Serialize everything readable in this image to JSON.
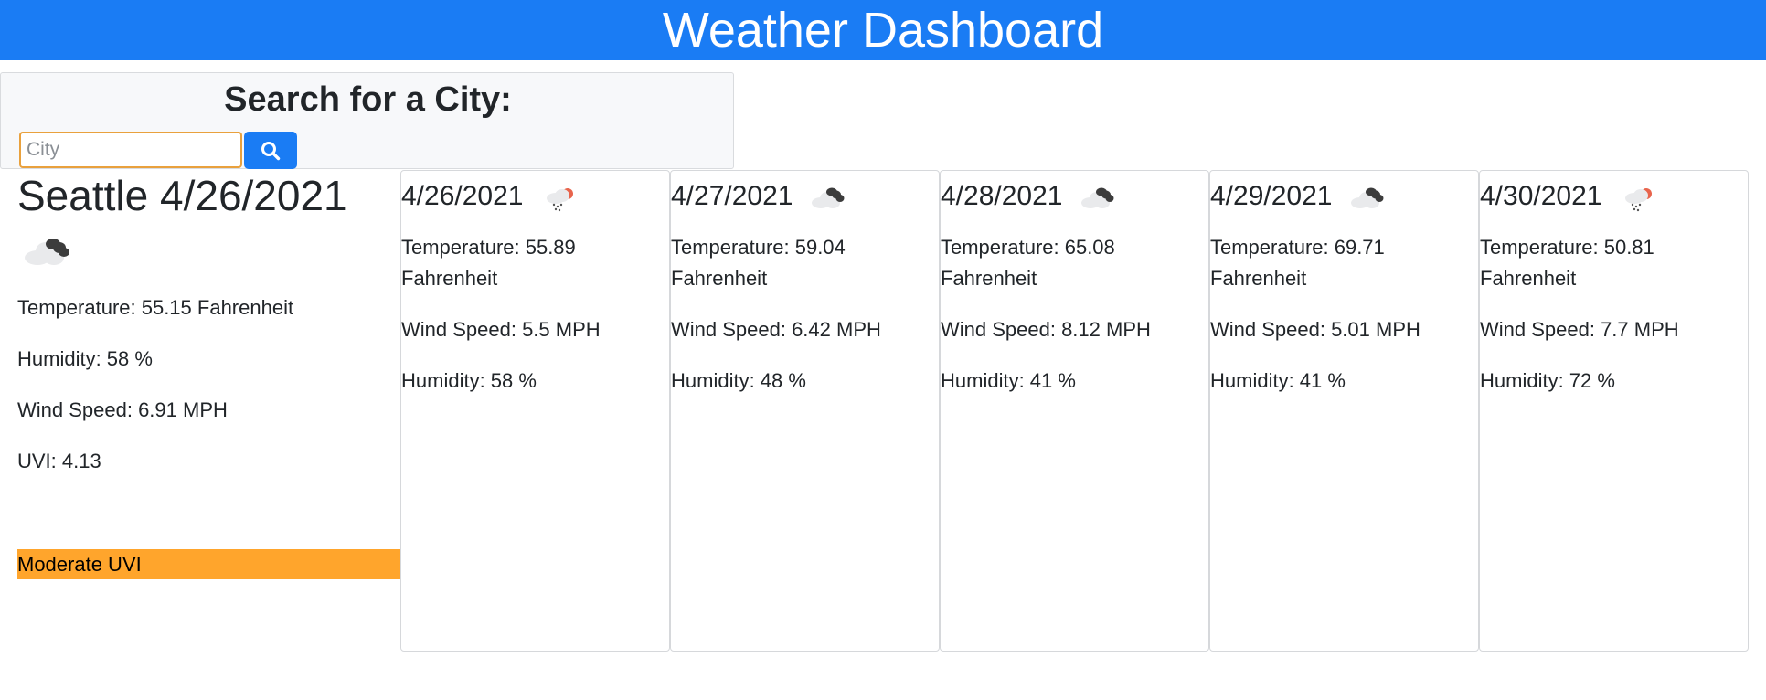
{
  "header": {
    "title": "Weather Dashboard"
  },
  "search": {
    "title": "Search for a City:",
    "placeholder": "City",
    "value": "",
    "button_icon": "search-icon"
  },
  "current": {
    "title": "Seattle 4/26/2021",
    "icon": "cloudy-icon",
    "temperature": "Temperature: 55.15 Fahrenheit",
    "humidity": "Humidity: 58 %",
    "wind": "Wind Speed: 6.91 MPH",
    "uvi": "UVI: 4.13",
    "uvi_badge": "Moderate UVI",
    "uvi_badge_color": "#ffa52c"
  },
  "forecast": [
    {
      "date": "4/26/2021",
      "icon": "rain-icon",
      "temperature": "Temperature: 55.89 Fahrenheit",
      "wind": "Wind Speed: 5.5 MPH",
      "humidity": "Humidity: 58 %"
    },
    {
      "date": "4/27/2021",
      "icon": "cloudy-icon",
      "temperature": "Temperature: 59.04 Fahrenheit",
      "wind": "Wind Speed: 6.42 MPH",
      "humidity": "Humidity: 48 %"
    },
    {
      "date": "4/28/2021",
      "icon": "cloudy-icon",
      "temperature": "Temperature: 65.08 Fahrenheit",
      "wind": "Wind Speed: 8.12 MPH",
      "humidity": "Humidity: 41 %"
    },
    {
      "date": "4/29/2021",
      "icon": "cloudy-icon",
      "temperature": "Temperature: 69.71 Fahrenheit",
      "wind": "Wind Speed: 5.01 MPH",
      "humidity": "Humidity: 41 %"
    },
    {
      "date": "4/30/2021",
      "icon": "rain-icon",
      "temperature": "Temperature: 50.81 Fahrenheit",
      "wind": "Wind Speed: 7.7 MPH",
      "humidity": "Humidity: 72 %"
    }
  ],
  "colors": {
    "header_bg": "#1a7cf4",
    "accent": "#1a7cf4",
    "input_border": "#e9a13d"
  }
}
